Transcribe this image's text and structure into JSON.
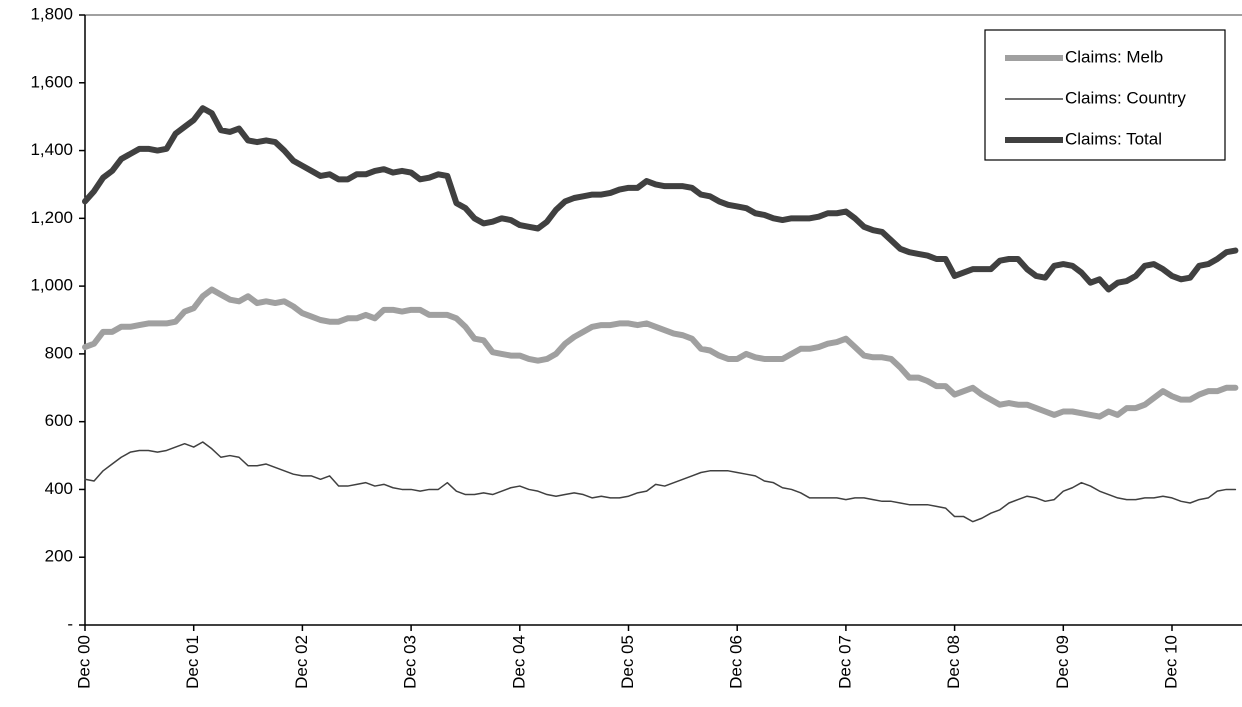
{
  "chart_data": {
    "type": "line",
    "categories": [
      "Dec 00",
      null,
      null,
      null,
      null,
      null,
      null,
      null,
      null,
      null,
      null,
      null,
      "Dec 01",
      null,
      null,
      null,
      null,
      null,
      null,
      null,
      null,
      null,
      null,
      null,
      "Dec 02",
      null,
      null,
      null,
      null,
      null,
      null,
      null,
      null,
      null,
      null,
      null,
      "Dec 03",
      null,
      null,
      null,
      null,
      null,
      null,
      null,
      null,
      null,
      null,
      null,
      "Dec 04",
      null,
      null,
      null,
      null,
      null,
      null,
      null,
      null,
      null,
      null,
      null,
      "Dec 05",
      null,
      null,
      null,
      null,
      null,
      null,
      null,
      null,
      null,
      null,
      null,
      "Dec 06",
      null,
      null,
      null,
      null,
      null,
      null,
      null,
      null,
      null,
      null,
      null,
      "Dec 07",
      null,
      null,
      null,
      null,
      null,
      null,
      null,
      null,
      null,
      null,
      null,
      "Dec 08",
      null,
      null,
      null,
      null,
      null,
      null,
      null,
      null,
      null,
      null,
      null,
      "Dec 09",
      null,
      null,
      null,
      null,
      null,
      null,
      null,
      null,
      null,
      null,
      null,
      "Dec 10",
      null,
      null,
      null,
      null,
      null,
      null,
      null
    ],
    "series": [
      {
        "name": "Claims: Melb",
        "color": "#a0a0a0",
        "line_width": 6,
        "values": [
          820,
          830,
          865,
          865,
          880,
          880,
          885,
          890,
          890,
          890,
          895,
          925,
          935,
          970,
          990,
          975,
          960,
          955,
          970,
          950,
          955,
          950,
          955,
          940,
          920,
          910,
          900,
          895,
          895,
          905,
          905,
          915,
          905,
          930,
          930,
          925,
          930,
          930,
          915,
          915,
          915,
          905,
          880,
          845,
          840,
          805,
          800,
          795,
          795,
          785,
          780,
          785,
          800,
          830,
          850,
          865,
          880,
          885,
          885,
          890,
          890,
          885,
          890,
          880,
          870,
          860,
          855,
          845,
          815,
          810,
          795,
          785,
          785,
          800,
          790,
          785,
          785,
          785,
          800,
          815,
          815,
          820,
          830,
          835,
          845,
          820,
          795,
          790,
          790,
          785,
          760,
          730,
          730,
          720,
          705,
          705,
          680,
          690,
          700,
          680,
          665,
          650,
          655,
          650,
          650,
          640,
          630,
          620,
          630,
          630,
          625,
          620,
          615,
          630,
          620,
          640,
          640,
          650,
          670,
          690,
          675,
          665,
          665,
          680,
          690,
          690,
          700,
          700
        ]
      },
      {
        "name": "Claims: Country",
        "color": "#404040",
        "line_width": 1.5,
        "values": [
          430,
          425,
          455,
          475,
          495,
          510,
          515,
          515,
          510,
          515,
          525,
          535,
          525,
          540,
          520,
          495,
          500,
          495,
          470,
          470,
          475,
          465,
          455,
          445,
          440,
          440,
          430,
          440,
          410,
          410,
          415,
          420,
          410,
          415,
          405,
          400,
          400,
          395,
          400,
          400,
          420,
          395,
          385,
          385,
          390,
          385,
          395,
          405,
          410,
          400,
          395,
          385,
          380,
          385,
          390,
          385,
          375,
          380,
          375,
          375,
          380,
          390,
          395,
          415,
          410,
          420,
          430,
          440,
          450,
          455,
          455,
          455,
          450,
          445,
          440,
          425,
          420,
          405,
          400,
          390,
          375,
          375,
          375,
          375,
          370,
          375,
          375,
          370,
          365,
          365,
          360,
          355,
          355,
          355,
          350,
          345,
          320,
          320,
          305,
          315,
          330,
          340,
          360,
          370,
          380,
          375,
          365,
          370,
          395,
          405,
          420,
          410,
          395,
          385,
          375,
          370,
          370,
          375,
          375,
          380,
          375,
          365,
          360,
          370,
          375,
          395,
          400,
          400
        ]
      },
      {
        "name": "Claims: Total",
        "color": "#404040",
        "line_width": 6,
        "values": [
          1250,
          1280,
          1320,
          1340,
          1375,
          1390,
          1405,
          1405,
          1400,
          1405,
          1450,
          1470,
          1490,
          1525,
          1510,
          1460,
          1455,
          1465,
          1430,
          1425,
          1430,
          1425,
          1400,
          1370,
          1355,
          1340,
          1325,
          1330,
          1315,
          1315,
          1330,
          1330,
          1340,
          1345,
          1335,
          1340,
          1335,
          1315,
          1320,
          1330,
          1325,
          1245,
          1230,
          1200,
          1185,
          1190,
          1200,
          1195,
          1180,
          1175,
          1170,
          1190,
          1225,
          1250,
          1260,
          1265,
          1270,
          1270,
          1275,
          1285,
          1290,
          1290,
          1310,
          1300,
          1295,
          1295,
          1295,
          1290,
          1270,
          1265,
          1250,
          1240,
          1235,
          1230,
          1215,
          1210,
          1200,
          1195,
          1200,
          1200,
          1200,
          1205,
          1215,
          1215,
          1220,
          1200,
          1175,
          1165,
          1160,
          1135,
          1110,
          1100,
          1095,
          1090,
          1080,
          1080,
          1030,
          1040,
          1050,
          1050,
          1050,
          1075,
          1080,
          1080,
          1050,
          1030,
          1025,
          1060,
          1065,
          1060,
          1040,
          1010,
          1020,
          990,
          1010,
          1015,
          1030,
          1060,
          1065,
          1050,
          1030,
          1020,
          1025,
          1060,
          1065,
          1080,
          1100,
          1105
        ]
      }
    ],
    "ylim": [
      0,
      1800
    ],
    "yticks": [
      {
        "value": 0,
        "label": "-"
      },
      200,
      400,
      600,
      800,
      {
        "value": 1000,
        "label": "1,000"
      },
      {
        "value": 1200,
        "label": "1,200"
      },
      {
        "value": 1400,
        "label": "1,400"
      },
      {
        "value": 1600,
        "label": "1,600"
      },
      {
        "value": 1800,
        "label": "1,800"
      }
    ],
    "grid": false,
    "legend": "top-right"
  }
}
